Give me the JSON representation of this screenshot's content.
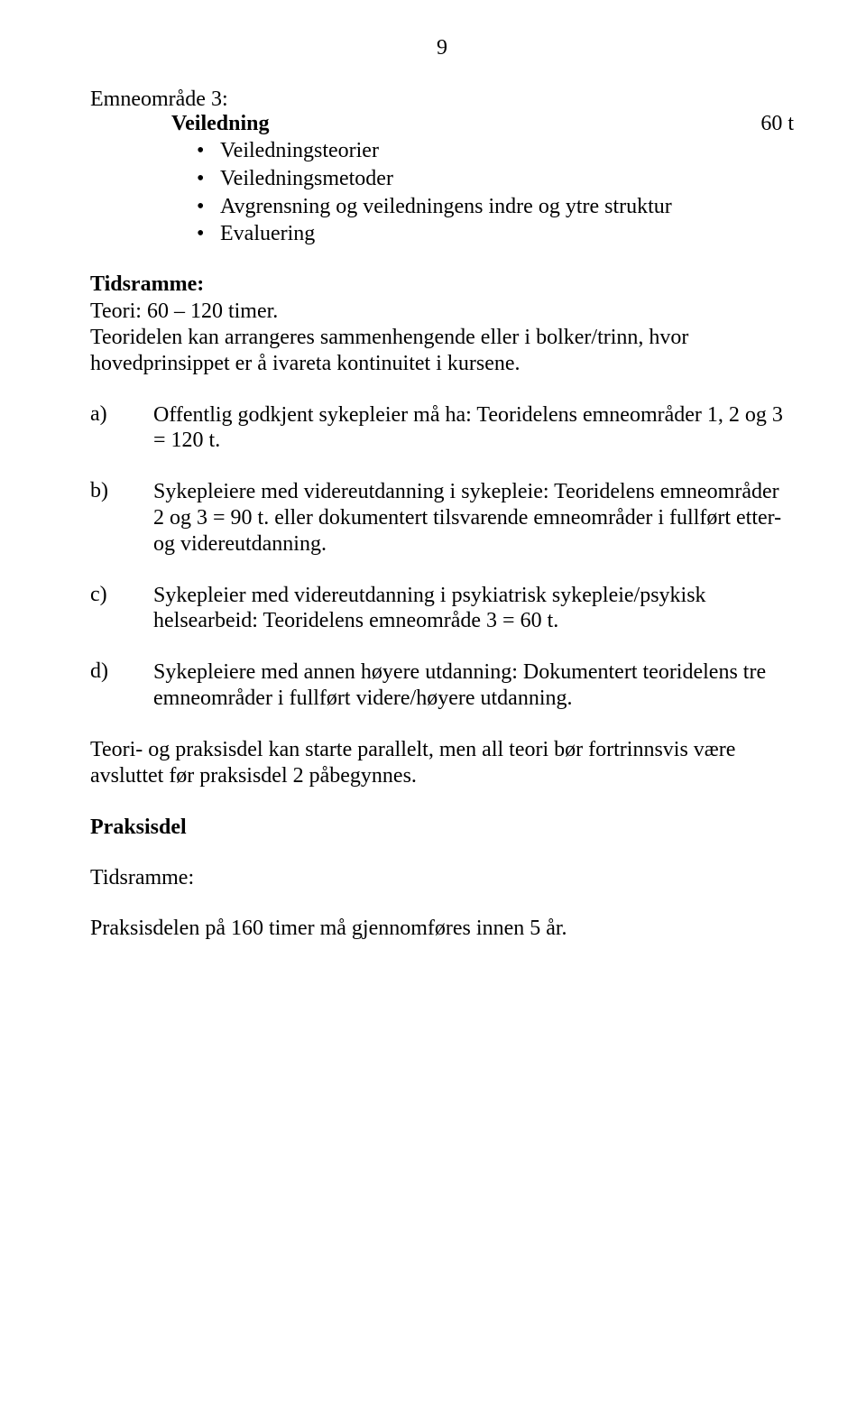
{
  "page_number": "9",
  "section": {
    "label": "Emneområde 3:",
    "heading": "Veiledning",
    "hours": "60 t",
    "bullets": [
      "Veiledningsteorier",
      "Veiledningsmetoder",
      "Avgrensning og veiledningens indre og ytre struktur",
      "Evaluering"
    ]
  },
  "tidsramme_heading": "Tidsramme:",
  "tidsramme_intro_1": "Teori: 60 – 120 timer.",
  "tidsramme_intro_2": "Teoridelen kan arrangeres sammenhengende eller i bolker/trinn, hvor hovedprinsippet er å ivareta kontinuitet i kursene.",
  "items": {
    "a": {
      "letter": "a)",
      "text": "Offentlig godkjent sykepleier må ha: Teoridelens emneområder 1, 2 og 3 = 120 t."
    },
    "b": {
      "letter": "b)",
      "text": "Sykepleiere med videreutdanning i sykepleie: Teoridelens emneområder 2 og 3 = 90 t. eller dokumentert tilsvarende emneområder i fullført etter- og videreutdanning."
    },
    "c": {
      "letter": "c)",
      "text": "Sykepleier med videreutdanning i psykiatrisk sykepleie/psykisk helsearbeid: Teoridelens emneområde 3 = 60 t."
    },
    "d": {
      "letter": "d)",
      "text": "Sykepleiere med annen høyere utdanning: Dokumentert teoridelens tre emneområder i fullført videre/høyere utdanning."
    }
  },
  "closing_para": "Teori- og praksisdel kan starte parallelt, men all teori bør fortrinnsvis være avsluttet før praksisdel 2 påbegynnes.",
  "praksisdel_heading": "Praksisdel",
  "tidsramme2_heading": "Tidsramme:",
  "final_line": "Praksisdelen på 160 timer må gjennomføres innen 5 år."
}
